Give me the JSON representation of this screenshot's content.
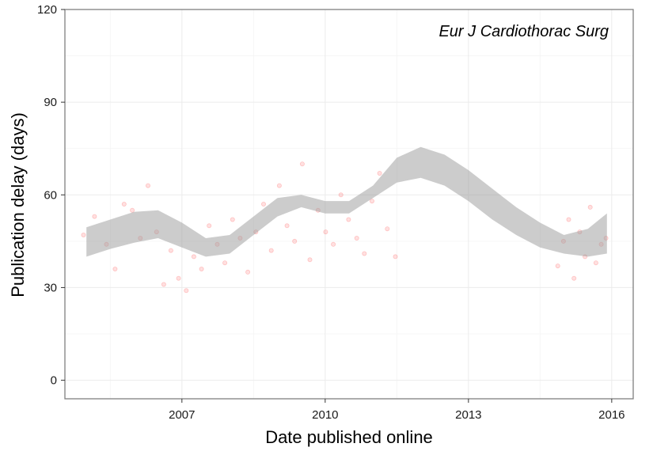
{
  "chart_data": {
    "type": "scatter",
    "title": "",
    "annotation": "Eur J Cardiothorac Surg",
    "xlabel": "Date published online",
    "ylabel": "Publication delay (days)",
    "xlim": [
      2004.55,
      2016.45
    ],
    "ylim": [
      -6,
      120
    ],
    "x_ticks": [
      2007,
      2010,
      2013,
      2016
    ],
    "x_tick_labels": [
      "2007",
      "2010",
      "2013",
      "2016"
    ],
    "y_ticks": [
      0,
      30,
      60,
      90,
      120
    ],
    "y_tick_labels": [
      "0",
      "30",
      "60",
      "90",
      "120"
    ],
    "grid": true,
    "legend": "none",
    "colors": {
      "points": "#ff0000",
      "band": "#999999",
      "grid": "#ebebeb",
      "frame": "#7f7f7f"
    },
    "point_alpha": 0.12,
    "points": [
      [
        2004.94,
        47
      ],
      [
        2005.17,
        53
      ],
      [
        2005.42,
        44
      ],
      [
        2005.6,
        36
      ],
      [
        2005.79,
        57
      ],
      [
        2005.96,
        55
      ],
      [
        2006.13,
        46
      ],
      [
        2006.29,
        63
      ],
      [
        2006.47,
        48
      ],
      [
        2006.62,
        31
      ],
      [
        2006.77,
        42
      ],
      [
        2006.93,
        33
      ],
      [
        2007.09,
        29
      ],
      [
        2007.25,
        40
      ],
      [
        2007.41,
        36
      ],
      [
        2007.57,
        50
      ],
      [
        2007.74,
        44
      ],
      [
        2007.9,
        38
      ],
      [
        2008.06,
        52
      ],
      [
        2008.22,
        46
      ],
      [
        2008.38,
        35
      ],
      [
        2008.55,
        48
      ],
      [
        2008.71,
        57
      ],
      [
        2008.87,
        42
      ],
      [
        2009.04,
        63
      ],
      [
        2009.2,
        50
      ],
      [
        2009.36,
        45
      ],
      [
        2009.52,
        70
      ],
      [
        2009.68,
        39
      ],
      [
        2009.85,
        55
      ],
      [
        2010.01,
        48
      ],
      [
        2010.17,
        44
      ],
      [
        2010.33,
        60
      ],
      [
        2010.49,
        52
      ],
      [
        2010.66,
        46
      ],
      [
        2010.82,
        41
      ],
      [
        2010.98,
        58
      ],
      [
        2011.14,
        67
      ],
      [
        2011.3,
        49
      ],
      [
        2011.47,
        40
      ],
      [
        2014.87,
        37
      ],
      [
        2014.99,
        45
      ],
      [
        2015.1,
        52
      ],
      [
        2015.21,
        33
      ],
      [
        2015.33,
        48
      ],
      [
        2015.44,
        40
      ],
      [
        2015.55,
        56
      ],
      [
        2015.67,
        38
      ],
      [
        2015.78,
        44
      ],
      [
        2015.88,
        46
      ]
    ],
    "series": [
      {
        "x": [
          2005.0,
          2005.5,
          2006.0,
          2006.5,
          2007.0,
          2007.5,
          2008.0,
          2008.5,
          2009.0,
          2009.5,
          2010.0,
          2010.5,
          2011.0,
          2011.5,
          2012.0,
          2012.5,
          2013.0,
          2013.5,
          2014.0,
          2014.5,
          2015.0,
          2015.5,
          2015.9
        ],
        "upper": [
          49.5,
          52,
          54.5,
          55,
          51,
          46,
          47,
          53,
          59,
          60,
          58,
          58,
          63,
          72,
          75.5,
          73,
          68,
          62,
          56,
          51,
          47,
          49,
          54
        ],
        "lower": [
          40,
          42.5,
          44.5,
          46,
          43,
          40,
          41,
          47,
          53,
          56,
          54,
          54,
          59,
          64,
          65.5,
          63,
          58,
          52,
          47,
          43,
          41,
          40,
          41
        ]
      }
    ]
  }
}
